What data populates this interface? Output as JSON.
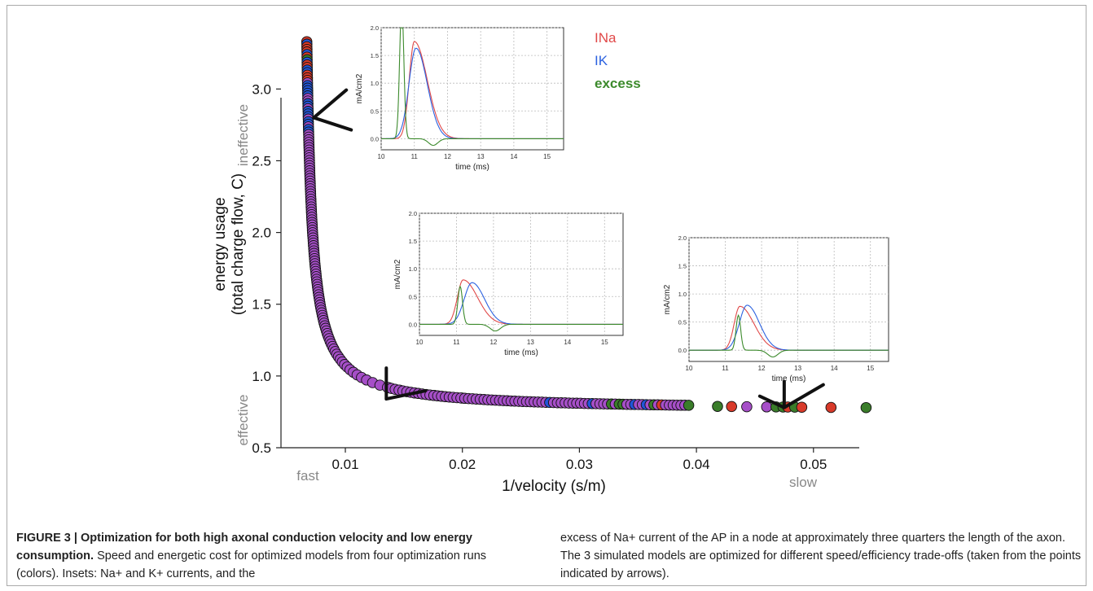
{
  "chart_data": {
    "type": "scatter",
    "xlabel": "1/velocity (s/m)",
    "ylabel_line1": "energy usage",
    "ylabel_line2": "(total charge flow, C)",
    "xlim": [
      0.0045,
      0.056
    ],
    "ylim": [
      0.5,
      3.45
    ],
    "x_ticks": [
      0.01,
      0.02,
      0.03,
      0.04,
      0.05
    ],
    "x_tick_labels": [
      "0.01",
      "0.02",
      "0.03",
      "0.04",
      "0.05"
    ],
    "y_ticks": [
      0.5,
      1.0,
      1.5,
      2.0,
      2.5,
      3.0
    ],
    "y_tick_labels": [
      "0.5",
      "1.0",
      "1.5",
      "2.0",
      "2.5",
      "3.0"
    ],
    "annotations": {
      "ineffective": "ineffective",
      "effective": "effective",
      "fast": "fast",
      "slow": "slow"
    },
    "grid": false,
    "series_colors": [
      "#d83a2a",
      "#2255d8",
      "#3a7d2a",
      "#a64fc8"
    ],
    "highlighted_points": [
      {
        "x": 0.0073,
        "y": 2.8
      },
      {
        "x": 0.0135,
        "y": 0.84
      },
      {
        "x": 0.0475,
        "y": 0.78
      }
    ],
    "insets": [
      {
        "name": "inset-fast",
        "xlim": [
          10,
          15.5
        ],
        "ylim": [
          -0.2,
          2.0
        ],
        "x_ticks": [
          10,
          11,
          12,
          13,
          14,
          15
        ],
        "y_ticks": [
          0.0,
          0.5,
          1.0,
          1.5,
          2.0
        ],
        "y_tick_labels": [
          "0.0",
          "0.5",
          "1.0",
          "1.5",
          "2.0"
        ],
        "xlabel": "time (ms)",
        "ylabel": "mA/cm2",
        "legend": [
          "INa",
          "IK",
          "excess"
        ],
        "peaks": {
          "na_t": 11.0,
          "na_a": 1.75,
          "k_t": 11.05,
          "k_a": 1.63,
          "ex_t": 10.62,
          "ex_a": 2.4,
          "ex_min": -0.12
        }
      },
      {
        "name": "inset-middle",
        "xlim": [
          10,
          15.5
        ],
        "ylim": [
          -0.2,
          2.0
        ],
        "x_ticks": [
          10,
          11,
          12,
          13,
          14,
          15
        ],
        "y_ticks": [
          0.0,
          0.5,
          1.0,
          1.5,
          2.0
        ],
        "y_tick_labels": [
          "0.0",
          "0.5",
          "1.0",
          "1.5",
          "2.0"
        ],
        "xlabel": "time (ms)",
        "ylabel": "mA/cm2",
        "peaks": {
          "na_t": 11.18,
          "na_a": 0.8,
          "k_t": 11.42,
          "k_a": 0.75,
          "ex_t": 11.1,
          "ex_a": 0.68,
          "ex_min": -0.12
        }
      },
      {
        "name": "inset-slow",
        "xlim": [
          10,
          15.5
        ],
        "ylim": [
          -0.2,
          2.0
        ],
        "x_ticks": [
          10,
          11,
          12,
          13,
          14,
          15
        ],
        "y_ticks": [
          0.0,
          0.5,
          1.0,
          1.5,
          2.0
        ],
        "y_tick_labels": [
          "0.0",
          "0.5",
          "1.0",
          "1.5",
          "2.0"
        ],
        "xlabel": "time (ms)",
        "ylabel": "mA/cm2",
        "peaks": {
          "na_t": 11.4,
          "na_a": 0.78,
          "k_t": 11.6,
          "k_a": 0.8,
          "ex_t": 11.36,
          "ex_a": 0.62,
          "ex_min": -0.12
        }
      }
    ]
  },
  "caption": {
    "title": "FIGURE 3 | Optimization for both high axonal conduction velocity and low energy consumption.",
    "left_body": "Speed and energetic cost for optimized models from four optimization runs (colors). Insets: Na+ and K+ currents, and the",
    "right_body": "excess of Na+ current of the AP in a node at approximately three quarters the length of the axon. The 3 simulated models are optimized for different speed/efficiency trade-offs (taken from the points indicated by arrows)."
  }
}
